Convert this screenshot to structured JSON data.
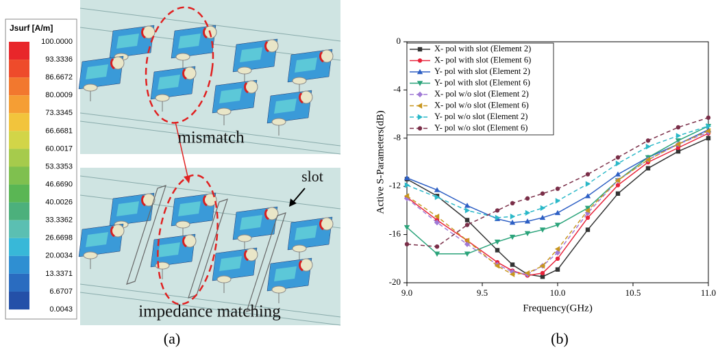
{
  "panel_a": {
    "colorbar": {
      "title": "Jsurf [A/m]",
      "labels": [
        "100.0000",
        "93.3336",
        "86.6672",
        "80.0009",
        "73.3345",
        "66.6681",
        "60.0017",
        "53.3353",
        "46.6690",
        "40.0026",
        "33.3362",
        "26.6698",
        "20.0034",
        "13.3371",
        "6.6707",
        "0.0043"
      ],
      "colors": [
        "#e8262a",
        "#ee4b2b",
        "#f2782e",
        "#f59e34",
        "#f2c43c",
        "#d2d548",
        "#a6cb4c",
        "#7fc04f",
        "#5ab654",
        "#4cb07c",
        "#5bbfb2",
        "#38b8d8",
        "#2f8fd2",
        "#2a6cc0",
        "#2450a8"
      ]
    },
    "annotations": {
      "mismatch": "mismatch",
      "slot": "slot",
      "matching": "impedance matching"
    },
    "caption": "(a)"
  },
  "caption_b": "(b)",
  "chart_data": {
    "type": "line",
    "xlabel": "Frequency(GHz)",
    "ylabel": "Active S-Parameters(dB)",
    "x": [
      9.0,
      9.2,
      9.4,
      9.6,
      9.7,
      9.8,
      9.9,
      10.0,
      10.2,
      10.4,
      10.6,
      10.8,
      11.0
    ],
    "xlim": [
      9.0,
      11.0
    ],
    "xticks": [
      {
        "value": 9,
        "label": "9.0"
      },
      9.5,
      {
        "value": 10,
        "label": "10.0"
      },
      10.5,
      {
        "value": 11,
        "label": "11.0"
      }
    ],
    "ylim": [
      -20,
      0
    ],
    "yticks": [
      0,
      -4,
      -8,
      -12,
      -16,
      -20
    ],
    "grid": false,
    "legend": "upper left",
    "series": [
      {
        "name": "X- pol with slot (Element 2)",
        "color": "#333333",
        "marker": "square",
        "dashed": false,
        "values": [
          -11.4,
          -12.8,
          -14.8,
          -17.3,
          -18.5,
          -19.3,
          -19.5,
          -18.9,
          -15.6,
          -12.6,
          -10.5,
          -9.1,
          -8.0
        ]
      },
      {
        "name": "X- pol with slot (Element 6)",
        "color": "#e8233a",
        "marker": "circle",
        "dashed": false,
        "values": [
          -12.9,
          -14.8,
          -16.5,
          -18.3,
          -19.0,
          -19.4,
          -19.2,
          -18.0,
          -14.6,
          -11.9,
          -10.0,
          -8.8,
          -7.6
        ]
      },
      {
        "name": "Y- pol with slot (Element 2)",
        "color": "#2d5fc4",
        "marker": "triangle-up",
        "dashed": false,
        "values": [
          -11.3,
          -12.3,
          -13.6,
          -14.7,
          -15.0,
          -14.9,
          -14.6,
          -14.2,
          -12.8,
          -11.0,
          -9.6,
          -8.5,
          -7.3
        ]
      },
      {
        "name": "Y- pol with slot (Element 6)",
        "color": "#2aa37a",
        "marker": "triangle-down",
        "dashed": false,
        "values": [
          -15.4,
          -17.6,
          -17.6,
          -16.6,
          -16.2,
          -15.9,
          -15.6,
          -15.2,
          -13.8,
          -11.5,
          -9.6,
          -8.2,
          -7.0
        ]
      },
      {
        "name": "X- pol w/o slot (Element 2)",
        "color": "#a07ad6",
        "marker": "diamond",
        "dashed": true,
        "values": [
          -13.0,
          -15.0,
          -16.8,
          -18.5,
          -19.1,
          -19.3,
          -18.6,
          -17.5,
          -14.2,
          -11.5,
          -9.8,
          -8.5,
          -7.5
        ]
      },
      {
        "name": "X- pol w/o slot (Element 6)",
        "color": "#c8961e",
        "marker": "triangle-left",
        "dashed": true,
        "values": [
          -12.8,
          -14.5,
          -16.5,
          -18.6,
          -19.3,
          -19.2,
          -18.6,
          -17.2,
          -14.0,
          -11.5,
          -9.8,
          -8.5,
          -7.4
        ]
      },
      {
        "name": "Y- pol w/o slot (Element 2)",
        "color": "#2ab8c8",
        "marker": "triangle-right",
        "dashed": true,
        "values": [
          -11.9,
          -12.9,
          -14.0,
          -14.6,
          -14.5,
          -14.2,
          -13.8,
          -13.2,
          -11.8,
          -10.1,
          -8.7,
          -7.8,
          -7.0
        ]
      },
      {
        "name": "Y- pol w/o slot (Element 6)",
        "color": "#7a2e48",
        "marker": "circle",
        "dashed": true,
        "values": [
          -16.8,
          -17.0,
          -15.2,
          -14.0,
          -13.4,
          -13.0,
          -12.6,
          -12.2,
          -11.0,
          -9.6,
          -8.2,
          -7.1,
          -6.3
        ]
      }
    ]
  }
}
